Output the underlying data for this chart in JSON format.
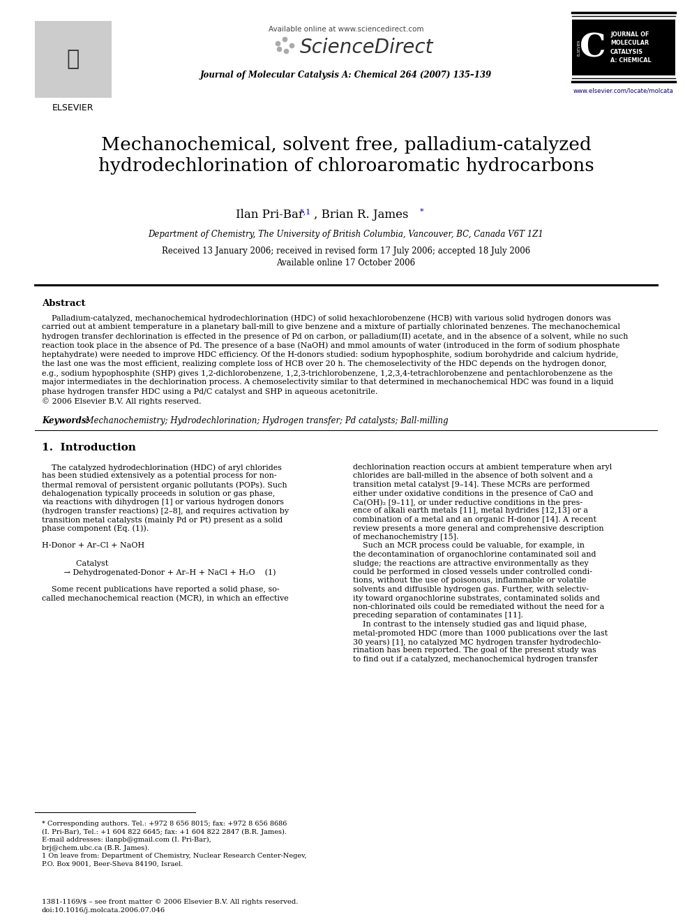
{
  "bg_color": "#ffffff",
  "title_text": "Mechanochemical, solvent free, palladium-catalyzed\nhydrodechlorination of chloroaromatic hydrocarbons",
  "author1": "Ilan Pri-Bar",
  "author1_sup": "*,1",
  "author2": ", Brian R. James",
  "author2_sup": "*",
  "affiliation": "Department of Chemistry, The University of British Columbia, Vancouver, BC, Canada V6T 1Z1",
  "received_line1": "Received 13 January 2006; received in revised form 17 July 2006; accepted 18 July 2006",
  "received_line2": "Available online 17 October 2006",
  "journal_name": "Journal of Molecular Catalysis A: Chemical 264 (2007) 135–139",
  "available_online": "Available online at www.sciencedirect.com",
  "website": "www.elsevier.com/locate/molcata",
  "elsevier_text": "ELSEVIER",
  "journal_label_lines": [
    "JOURNAL OF",
    "MOLECULAR",
    "CATALYSIS",
    "A: CHEMICAL"
  ],
  "abstract_title": "Abstract",
  "abstract_body_lines": [
    "    Palladium-catalyzed, mechanochemical hydrodechlorination (HDC) of solid hexachlorobenzene (HCB) with various solid hydrogen donors was",
    "carried out at ambient temperature in a planetary ball-mill to give benzene and a mixture of partially chlorinated benzenes. The mechanochemical",
    "hydrogen transfer dechlorination is effected in the presence of Pd on carbon, or palladium(II) acetate, and in the absence of a solvent, while no such",
    "reaction took place in the absence of Pd. The presence of a base (NaOH) and mmol amounts of water (introduced in the form of sodium phosphate",
    "heptahydrate) were needed to improve HDC efficiency. Of the H-donors studied: sodium hypophosphite, sodium borohydride and calcium hydride,",
    "the last one was the most efficient, realizing complete loss of HCB over 20 h. The chemoselectivity of the HDC depends on the hydrogen donor,",
    "e.g., sodium hypophosphite (SHP) gives 1,2-dichlorobenzene, 1,2,3-trichlorobenzene, 1,2,3,4-tetrachlorobenzene and pentachlorobenzene as the",
    "major intermediates in the dechlorination process. A chemoselectivity similar to that determined in mechanochemical HDC was found in a liquid",
    "phase hydrogen transfer HDC using a Pd/C catalyst and SHP in aqueous acetonitrile.",
    "© 2006 Elsevier B.V. All rights reserved."
  ],
  "keywords_label": "Keywords:",
  "keywords_body": "  Mechanochemistry; Hydrodechlorination; Hydrogen transfer; Pd catalysts; Ball-milling",
  "section1_title": "1.  Introduction",
  "left_col_lines": [
    "    The catalyzed hydrodechlorination (HDC) of aryl chlorides",
    "has been studied extensively as a potential process for non-",
    "thermal removal of persistent organic pollutants (POPs). Such",
    "dehalogenation typically proceeds in solution or gas phase,",
    "via reactions with dihydrogen [1] or various hydrogen donors",
    "(hydrogen transfer reactions) [2–8], and requires activation by",
    "transition metal catalysts (mainly Pd or Pt) present as a solid",
    "phase component (Eq. (1)).",
    "",
    "H-Donor + Ar–Cl + NaOH",
    "",
    "              Catalyst",
    "         → Dehydrogenated-Donor + Ar–H + NaCl + H₂O    (1)",
    "",
    "    Some recent publications have reported a solid phase, so-",
    "called mechanochemical reaction (MCR), in which an effective"
  ],
  "right_col_lines": [
    "dechlorination reaction occurs at ambient temperature when aryl",
    "chlorides are ball-milled in the absence of both solvent and a",
    "transition metal catalyst [9–14]. These MCRs are performed",
    "either under oxidative conditions in the presence of CaO and",
    "Ca(OH)₂ [9–11], or under reductive conditions in the pres-",
    "ence of alkali earth metals [11], metal hydrides [12,13] or a",
    "combination of a metal and an organic H-donor [14]. A recent",
    "review presents a more general and comprehensive description",
    "of mechanochemistry [15].",
    "    Such an MCR process could be valuable, for example, in",
    "the decontamination of organochlorine contaminated soil and",
    "sludge; the reactions are attractive environmentally as they",
    "could be performed in closed vessels under controlled condi-",
    "tions, without the use of poisonous, inflammable or volatile",
    "solvents and diffusible hydrogen gas. Further, with selectiv-",
    "ity toward organochlorine substrates, contaminated solids and",
    "non-chlorinated oils could be remediated without the need for a",
    "preceding separation of contaminates [11].",
    "    In contrast to the intensely studied gas and liquid phase,",
    "metal-promoted HDC (more than 1000 publications over the last",
    "30 years) [1], no catalyzed MC hydrogen transfer hydrodechlo-",
    "rination has been reported. The goal of the present study was",
    "to find out if a catalyzed, mechanochemical hydrogen transfer"
  ],
  "footnote_lines": [
    "* Corresponding authors. Tel.: +972 8 656 8015; fax: +972 8 656 8686",
    "(I. Pri-Bar), Tel.: +1 604 822 6645; fax: +1 604 822 2847 (B.R. James).",
    "E-mail addresses: ilanpb@gmail.com (I. Pri-Bar),",
    "brj@chem.ubc.ca (B.R. James).",
    "1 On leave from: Department of Chemistry, Nuclear Research Center-Negev,",
    "P.O. Box 9001, Beer-Sheva 84190, Israel."
  ],
  "issn_lines": [
    "1381-1169/$ – see front matter © 2006 Elsevier B.V. All rights reserved.",
    "doi:10.1016/j.molcata.2006.07.046"
  ],
  "blue_color": "#0000cc",
  "text_color": "#000000",
  "gray_color": "#444444"
}
